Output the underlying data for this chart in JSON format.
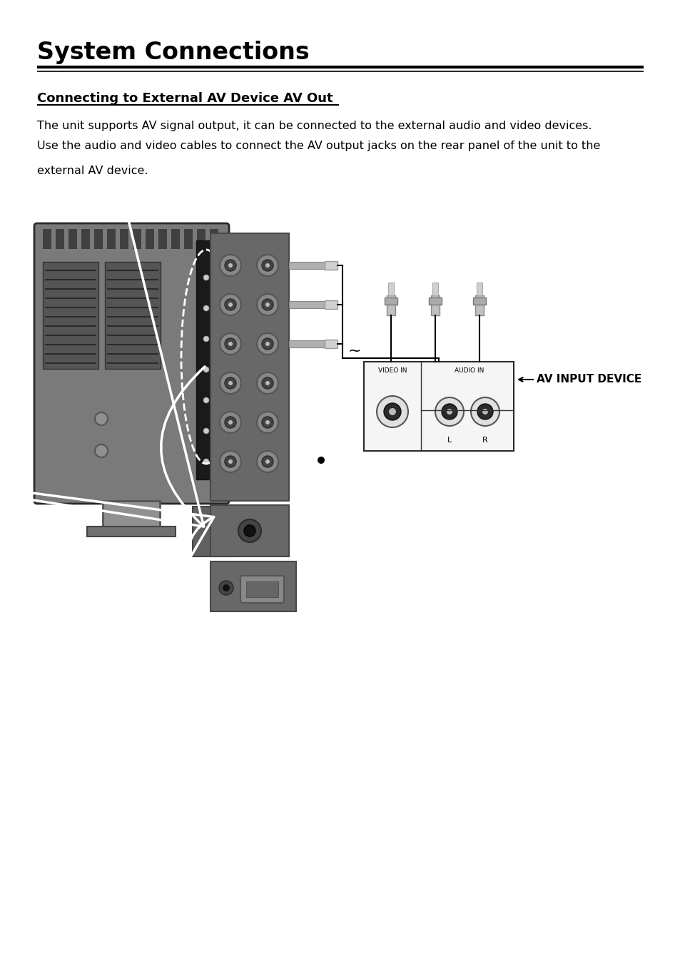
{
  "title": "System Connections",
  "subtitle": "Connecting to External AV Device AV Out",
  "body_line1": "The unit supports AV signal output, it can be connected to the external audio and video devices.",
  "body_line2": "Use the audio and video cables to connect the AV output jacks on the rear panel of the unit to the",
  "body_line3": "external AV device.",
  "av_input_label": "AV INPUT DEVICE",
  "video_in_label": "VIDEO IN",
  "audio_in_label": "AUDIO IN",
  "l_label": "L",
  "r_label": "R",
  "bg_color": "#ffffff",
  "text_color": "#000000",
  "title_fontsize": 24,
  "subtitle_fontsize": 13,
  "body_fontsize": 11.5
}
